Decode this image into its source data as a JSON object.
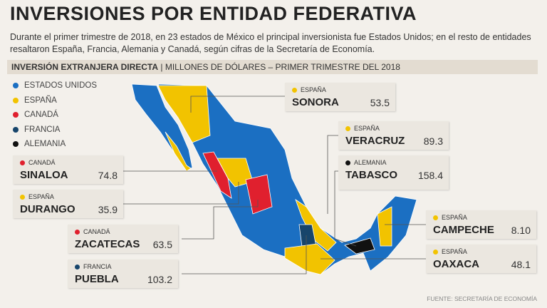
{
  "header": {
    "title": "INVERSIONES POR ENTIDAD FEDERATIVA",
    "subtitle": "Durante el primer trimestre de 2018, en 23 estados de México el principal inversionista fue Estados Unidos; en el resto de entidades resaltaron España, Francia, Alemania y Canadá, según cifras de la Secretaría de Economía.",
    "section": "INVERSIÓN EXTRANJERA DIRECTA",
    "section_detail": "| MILLONES DE DÓLARES – PRIMER TRIMESTRE DEL 2018"
  },
  "legend": [
    {
      "name": "ESTADOS UNIDOS",
      "color": "#1b6fc2"
    },
    {
      "name": "ESPAÑA",
      "color": "#f2c300"
    },
    {
      "name": "CANADÁ",
      "color": "#e0202e"
    },
    {
      "name": "FRANCIA",
      "color": "#17456b"
    },
    {
      "name": "ALEMANIA",
      "color": "#111111"
    }
  ],
  "callouts": [
    {
      "country": "ESPAÑA",
      "state": "SONORA",
      "value": 53.5
    },
    {
      "country": "ESPAÑA",
      "state": "VERACRUZ",
      "value": 89.3
    },
    {
      "country": "ALEMANIA",
      "state": "TABASCO",
      "value": 158.4
    },
    {
      "country": "CANADÁ",
      "state": "SINALOA",
      "value": 74.8
    },
    {
      "country": "ESPAÑA",
      "state": "DURANGO",
      "value": 35.9
    },
    {
      "country": "CANADÁ",
      "state": "ZACATECAS",
      "value": 63.5
    },
    {
      "country": "FRANCIA",
      "state": "PUEBLA",
      "value": 103.2
    },
    {
      "country": "ESPAÑA",
      "state": "CAMPECHE",
      "value": 8.1,
      "value_label": "8.10"
    },
    {
      "country": "ESPAÑA",
      "state": "OAXACA",
      "value": 48.1
    }
  ],
  "source": "FUENTE: SECRETARÍA DE ECONOMÍA"
}
